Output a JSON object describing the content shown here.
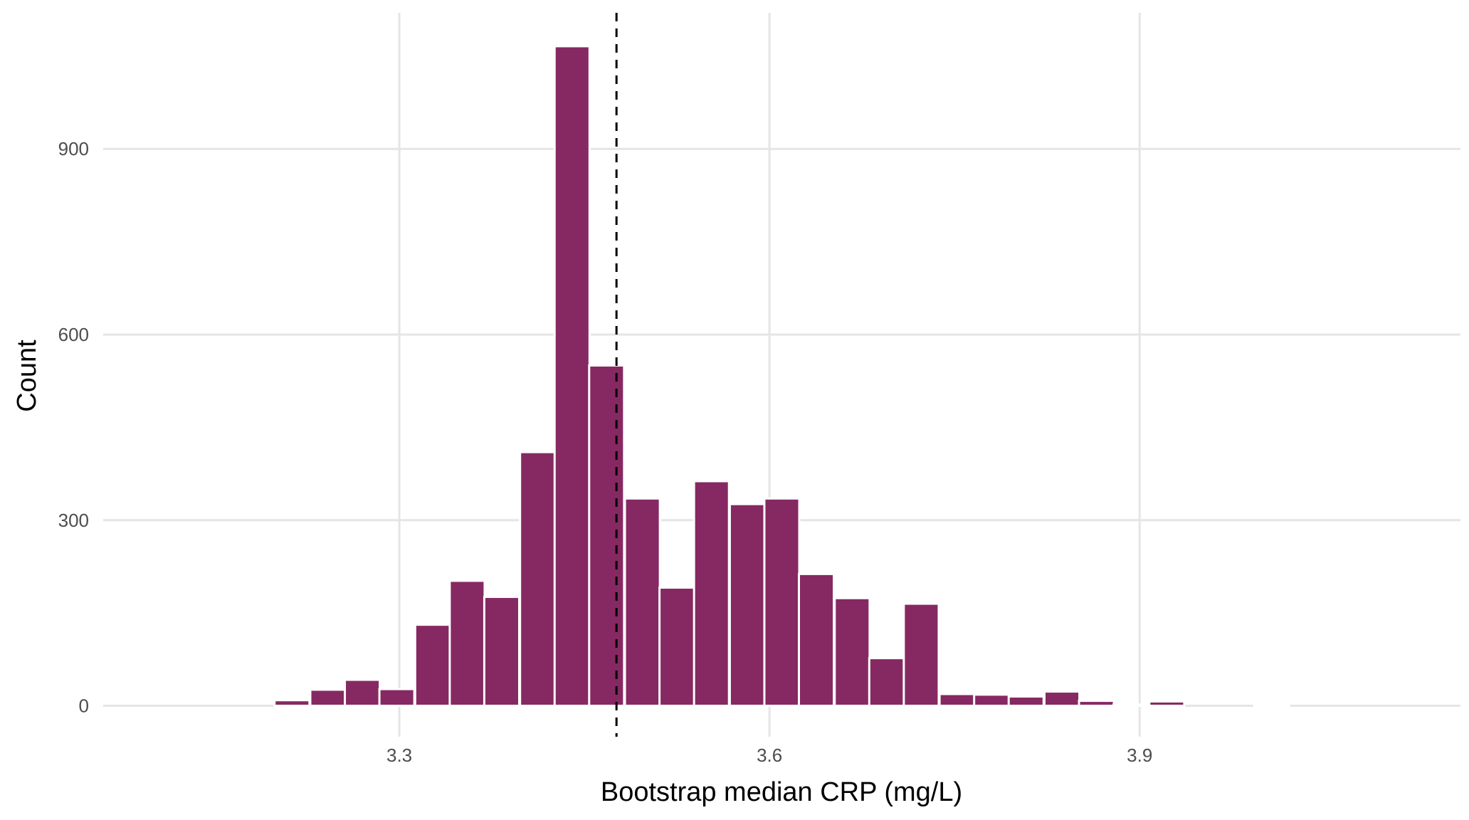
{
  "chart_data": {
    "type": "bar",
    "title": "",
    "xlabel": "Bootstrap median CRP (mg/L)",
    "ylabel": "Count",
    "x_ticks": [
      {
        "value": 3.3,
        "label": "3.3"
      },
      {
        "value": 3.6,
        "label": "3.6"
      },
      {
        "value": 3.9,
        "label": "3.9"
      }
    ],
    "y_ticks": [
      {
        "value": 0,
        "label": "0"
      },
      {
        "value": 300,
        "label": "300"
      },
      {
        "value": 600,
        "label": "600"
      },
      {
        "value": 900,
        "label": "900"
      }
    ],
    "xlim": [
      3.06,
      4.16
    ],
    "ylim": [
      -50,
      1120
    ],
    "bin_width": 0.0283,
    "bins": [
      {
        "x": 3.1,
        "count": 0
      },
      {
        "x": 3.128,
        "count": 0
      },
      {
        "x": 3.157,
        "count": 0
      },
      {
        "x": 3.185,
        "count": 0
      },
      {
        "x": 3.213,
        "count": 9
      },
      {
        "x": 3.242,
        "count": 26
      },
      {
        "x": 3.27,
        "count": 42
      },
      {
        "x": 3.298,
        "count": 27
      },
      {
        "x": 3.327,
        "count": 131
      },
      {
        "x": 3.355,
        "count": 202
      },
      {
        "x": 3.383,
        "count": 176
      },
      {
        "x": 3.412,
        "count": 410
      },
      {
        "x": 3.44,
        "count": 1066
      },
      {
        "x": 3.468,
        "count": 550
      },
      {
        "x": 3.497,
        "count": 335
      },
      {
        "x": 3.525,
        "count": 191
      },
      {
        "x": 3.553,
        "count": 363
      },
      {
        "x": 3.582,
        "count": 326
      },
      {
        "x": 3.61,
        "count": 335
      },
      {
        "x": 3.638,
        "count": 213
      },
      {
        "x": 3.667,
        "count": 174
      },
      {
        "x": 3.695,
        "count": 77
      },
      {
        "x": 3.723,
        "count": 165
      },
      {
        "x": 3.752,
        "count": 19
      },
      {
        "x": 3.78,
        "count": 18
      },
      {
        "x": 3.808,
        "count": 15
      },
      {
        "x": 3.837,
        "count": 23
      },
      {
        "x": 3.865,
        "count": 8
      },
      {
        "x": 3.893,
        "count": 2
      },
      {
        "x": 3.922,
        "count": 7
      },
      {
        "x": 3.95,
        "count": 0
      },
      {
        "x": 3.978,
        "count": 0
      },
      {
        "x": 4.007,
        "count": 1
      },
      {
        "x": 4.035,
        "count": 0
      },
      {
        "x": 4.063,
        "count": 0
      },
      {
        "x": 4.092,
        "count": 0
      },
      {
        "x": 4.12,
        "count": 0
      }
    ],
    "reference_line": {
      "x": 3.476,
      "style": "dashed"
    },
    "grid": true,
    "colors": {
      "bar": "#862962",
      "bar_outline": "#ffffff",
      "grid": "#e5e5e5",
      "reference_line": "#000000"
    }
  }
}
